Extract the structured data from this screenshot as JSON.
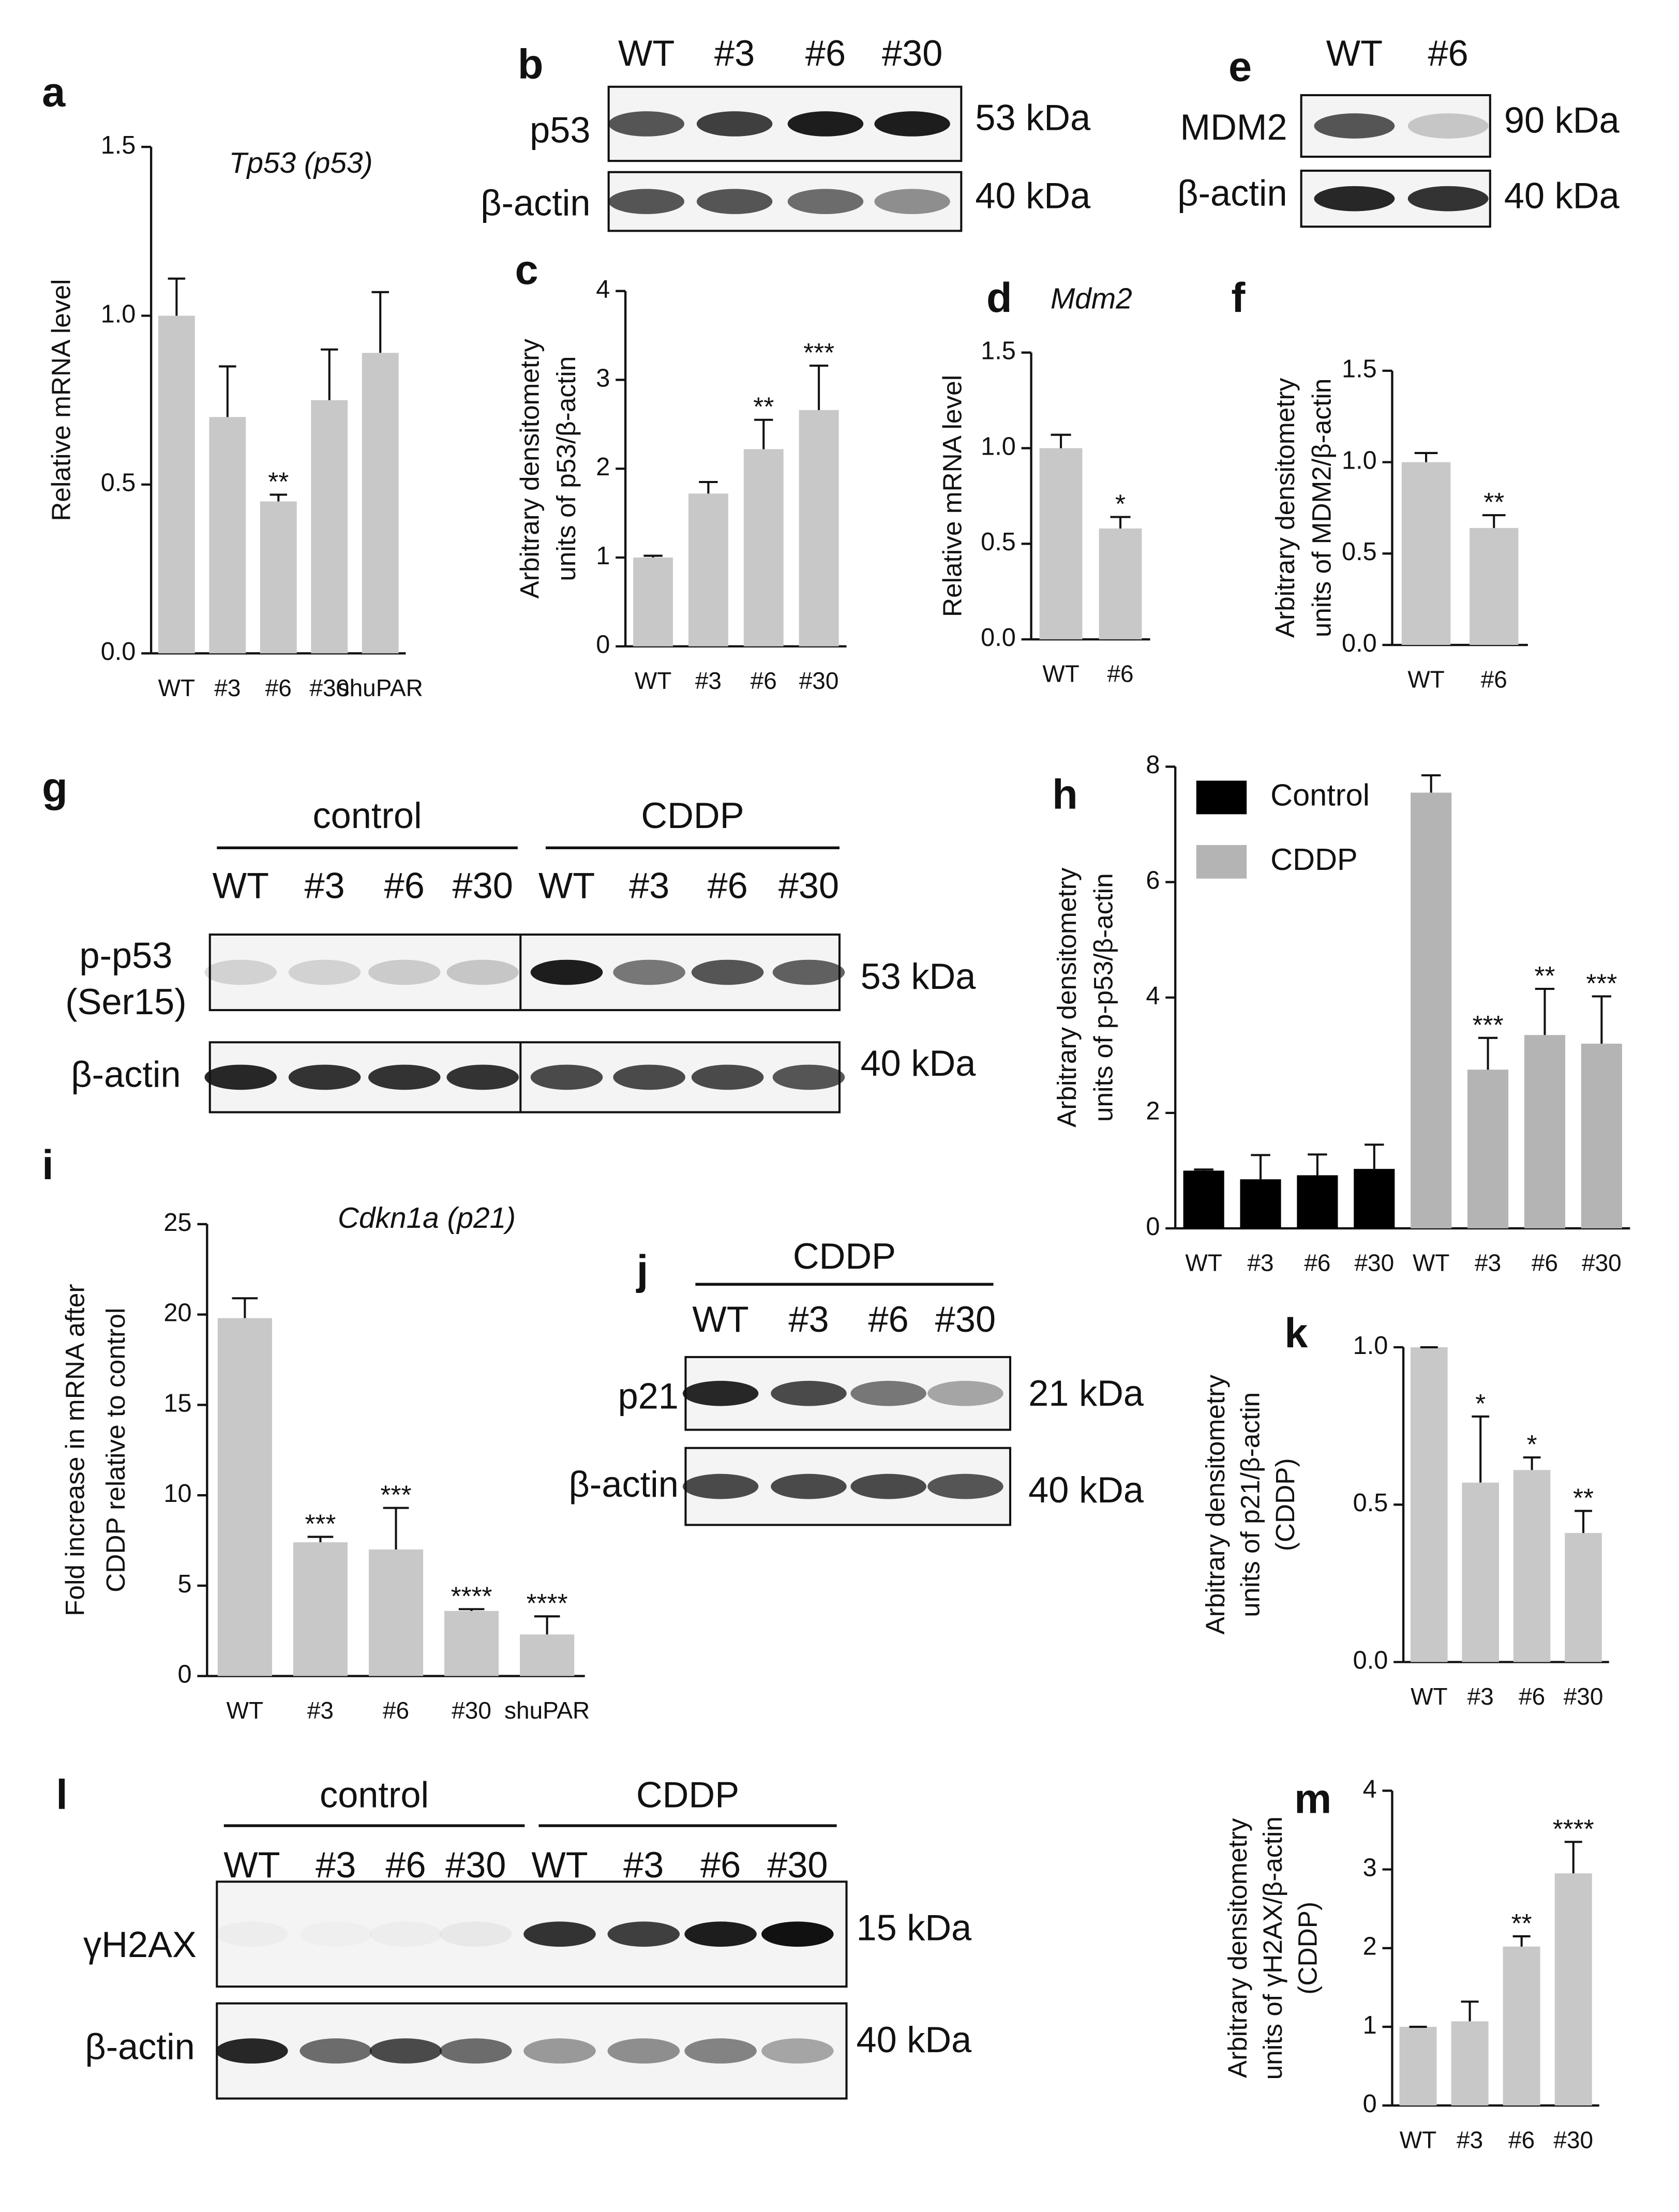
{
  "chart_data": [
    {
      "type": "bar",
      "panel": "a",
      "title": "Tp53 (p53)",
      "ylabel": "Relative mRNA level",
      "categories": [
        "WT",
        "#3",
        "#6",
        "#30",
        "shuPAR"
      ],
      "values": [
        1.0,
        0.7,
        0.45,
        0.75,
        0.89
      ],
      "errors": [
        0.11,
        0.15,
        0.02,
        0.15,
        0.18
      ],
      "color": "#c8c8c8",
      "ylim": [
        0,
        1.5
      ],
      "yticks": [
        {
          "value": 0,
          "label": "0.0"
        },
        0.5,
        {
          "value": 1,
          "label": "1.0"
        },
        1.5
      ],
      "annotations": [
        {
          "index": 2,
          "text": "**"
        }
      ]
    },
    {
      "type": "bar",
      "panel": "c",
      "ylabel": [
        "Arbitrary densitometry",
        "units of p53/β-actin"
      ],
      "categories": [
        "WT",
        "#3",
        "#6",
        "#30"
      ],
      "values": [
        1.0,
        1.72,
        2.22,
        2.66
      ],
      "errors": [
        0.02,
        0.13,
        0.33,
        0.5
      ],
      "color": "#c8c8c8",
      "ylim": [
        0,
        4
      ],
      "yticks": [
        0,
        1,
        2,
        3,
        4
      ],
      "annotations": [
        {
          "index": 2,
          "text": "**"
        },
        {
          "index": 3,
          "text": "***"
        }
      ]
    },
    {
      "type": "bar",
      "panel": "d",
      "title": "Mdm2",
      "ylabel": "Relative mRNA level",
      "categories": [
        "WT",
        "#6"
      ],
      "values": [
        1.0,
        0.58
      ],
      "errors": [
        0.07,
        0.06
      ],
      "color": "#c8c8c8",
      "ylim": [
        0,
        1.5
      ],
      "yticks": [
        {
          "value": 0,
          "label": "0.0"
        },
        0.5,
        {
          "value": 1,
          "label": "1.0"
        },
        1.5
      ],
      "annotations": [
        {
          "index": 1,
          "text": "*"
        }
      ]
    },
    {
      "type": "bar",
      "panel": "f",
      "ylabel": [
        "Arbitrary densitometry",
        "units of MDM2/β-actin"
      ],
      "categories": [
        "WT",
        "#6"
      ],
      "values": [
        1.0,
        0.64
      ],
      "errors": [
        0.05,
        0.07
      ],
      "color": "#c8c8c8",
      "ylim": [
        0,
        1.5
      ],
      "yticks": [
        {
          "value": 0,
          "label": "0.0"
        },
        0.5,
        {
          "value": 1,
          "label": "1.0"
        },
        1.5
      ],
      "annotations": [
        {
          "index": 1,
          "text": "**"
        }
      ]
    },
    {
      "type": "bar",
      "panel": "h",
      "ylabel": [
        "Arbitrary densitometry",
        "units of p-p53/β-actin"
      ],
      "categories": [
        "WT",
        "#3",
        "#6",
        "#30",
        "WT",
        "#3",
        "#6",
        "#30"
      ],
      "series": [
        {
          "name": "Control",
          "color": "#000000",
          "values": [
            1.0,
            0.85,
            0.92,
            1.03,
            null,
            null,
            null,
            null
          ],
          "errors": [
            0.02,
            0.42,
            0.36,
            0.42,
            null,
            null,
            null,
            null
          ]
        },
        {
          "name": "CDDP",
          "color": "#b4b4b4",
          "values": [
            null,
            null,
            null,
            null,
            7.55,
            2.75,
            3.35,
            3.2
          ],
          "errors": [
            null,
            null,
            null,
            null,
            0.3,
            0.55,
            0.8,
            0.82
          ]
        }
      ],
      "legend": "top-left",
      "ylim": [
        0,
        8
      ],
      "yticks": [
        0,
        2,
        4,
        6,
        8
      ],
      "annotations": [
        {
          "series": 1,
          "index": 5,
          "text": "***"
        },
        {
          "series": 1,
          "index": 6,
          "text": "**"
        },
        {
          "series": 1,
          "index": 7,
          "text": "***"
        }
      ]
    },
    {
      "type": "bar",
      "panel": "i",
      "title": "Cdkn1a (p21)",
      "ylabel": [
        "Fold increase in mRNA after",
        "CDDP relative to control"
      ],
      "categories": [
        "WT",
        "#3",
        "#6",
        "#30",
        "shuPAR"
      ],
      "values": [
        19.8,
        7.4,
        7.0,
        3.6,
        2.3
      ],
      "errors": [
        1.1,
        0.3,
        2.3,
        0.1,
        1.0
      ],
      "color": "#c8c8c8",
      "ylim": [
        0,
        25
      ],
      "yticks": [
        0,
        5,
        10,
        15,
        20,
        25
      ],
      "annotations": [
        {
          "index": 1,
          "text": "***"
        },
        {
          "index": 2,
          "text": "***"
        },
        {
          "index": 3,
          "text": "****"
        },
        {
          "index": 4,
          "text": "****"
        }
      ]
    },
    {
      "type": "bar",
      "panel": "k",
      "ylabel": [
        "Arbitrary densitometry",
        "units of p21/β-actin",
        "(CDDP)"
      ],
      "categories": [
        "WT",
        "#3",
        "#6",
        "#30"
      ],
      "values": [
        1.0,
        0.57,
        0.61,
        0.41
      ],
      "errors": [
        0,
        0.21,
        0.04,
        0.07
      ],
      "color": "#c8c8c8",
      "ylim": [
        0,
        1
      ],
      "yticks": [
        {
          "value": 0,
          "label": "0.0"
        },
        0.5,
        {
          "value": 1,
          "label": "1.0"
        }
      ],
      "annotations": [
        {
          "index": 1,
          "text": "*"
        },
        {
          "index": 2,
          "text": "*"
        },
        {
          "index": 3,
          "text": "**"
        }
      ]
    },
    {
      "type": "bar",
      "panel": "m",
      "ylabel": [
        "Arbitrary densitometry",
        "units of γH2AX/β-actin",
        "(CDDP)"
      ],
      "categories": [
        "WT",
        "#3",
        "#6",
        "#30"
      ],
      "values": [
        1.0,
        1.07,
        2.02,
        2.95
      ],
      "errors": [
        0,
        0.25,
        0.13,
        0.4
      ],
      "color": "#c8c8c8",
      "ylim": [
        0,
        4
      ],
      "yticks": [
        0,
        1,
        2,
        3,
        4
      ],
      "annotations": [
        {
          "index": 2,
          "text": "**"
        },
        {
          "index": 3,
          "text": "****"
        }
      ]
    }
  ],
  "blots": [
    {
      "panel": "b",
      "lanes": [
        "WT",
        "#3",
        "#6",
        "#30"
      ],
      "rows": [
        {
          "label": "p53",
          "size": "53 kDa"
        },
        {
          "label": "β-actin",
          "size": "40 kDa"
        }
      ]
    },
    {
      "panel": "e",
      "lanes": [
        "WT",
        "#6"
      ],
      "rows": [
        {
          "label": "MDM2",
          "size": "90 kDa"
        },
        {
          "label": "β-actin",
          "size": "40 kDa"
        }
      ]
    },
    {
      "panel": "g",
      "groups": [
        "control",
        "CDDP"
      ],
      "lanes": [
        "WT",
        "#3",
        "#6",
        "#30",
        "WT",
        "#3",
        "#6",
        "#30"
      ],
      "rows": [
        {
          "label": [
            "p-p53",
            "(Ser15)"
          ],
          "size": "53 kDa"
        },
        {
          "label": "β-actin",
          "size": "40 kDa"
        }
      ]
    },
    {
      "panel": "j",
      "groups": [
        "CDDP"
      ],
      "lanes": [
        "WT",
        "#3",
        "#6",
        "#30"
      ],
      "rows": [
        {
          "label": "p21",
          "size": "21 kDa"
        },
        {
          "label": "β-actin",
          "size": "40 kDa"
        }
      ]
    },
    {
      "panel": "l",
      "groups": [
        "control",
        "CDDP"
      ],
      "lanes": [
        "WT",
        "#3",
        "#6",
        "#30",
        "WT",
        "#3",
        "#6",
        "#30"
      ],
      "rows": [
        {
          "label": "γH2AX",
          "size": "15 kDa"
        },
        {
          "label": "β-actin",
          "size": "40 kDa"
        }
      ]
    }
  ]
}
